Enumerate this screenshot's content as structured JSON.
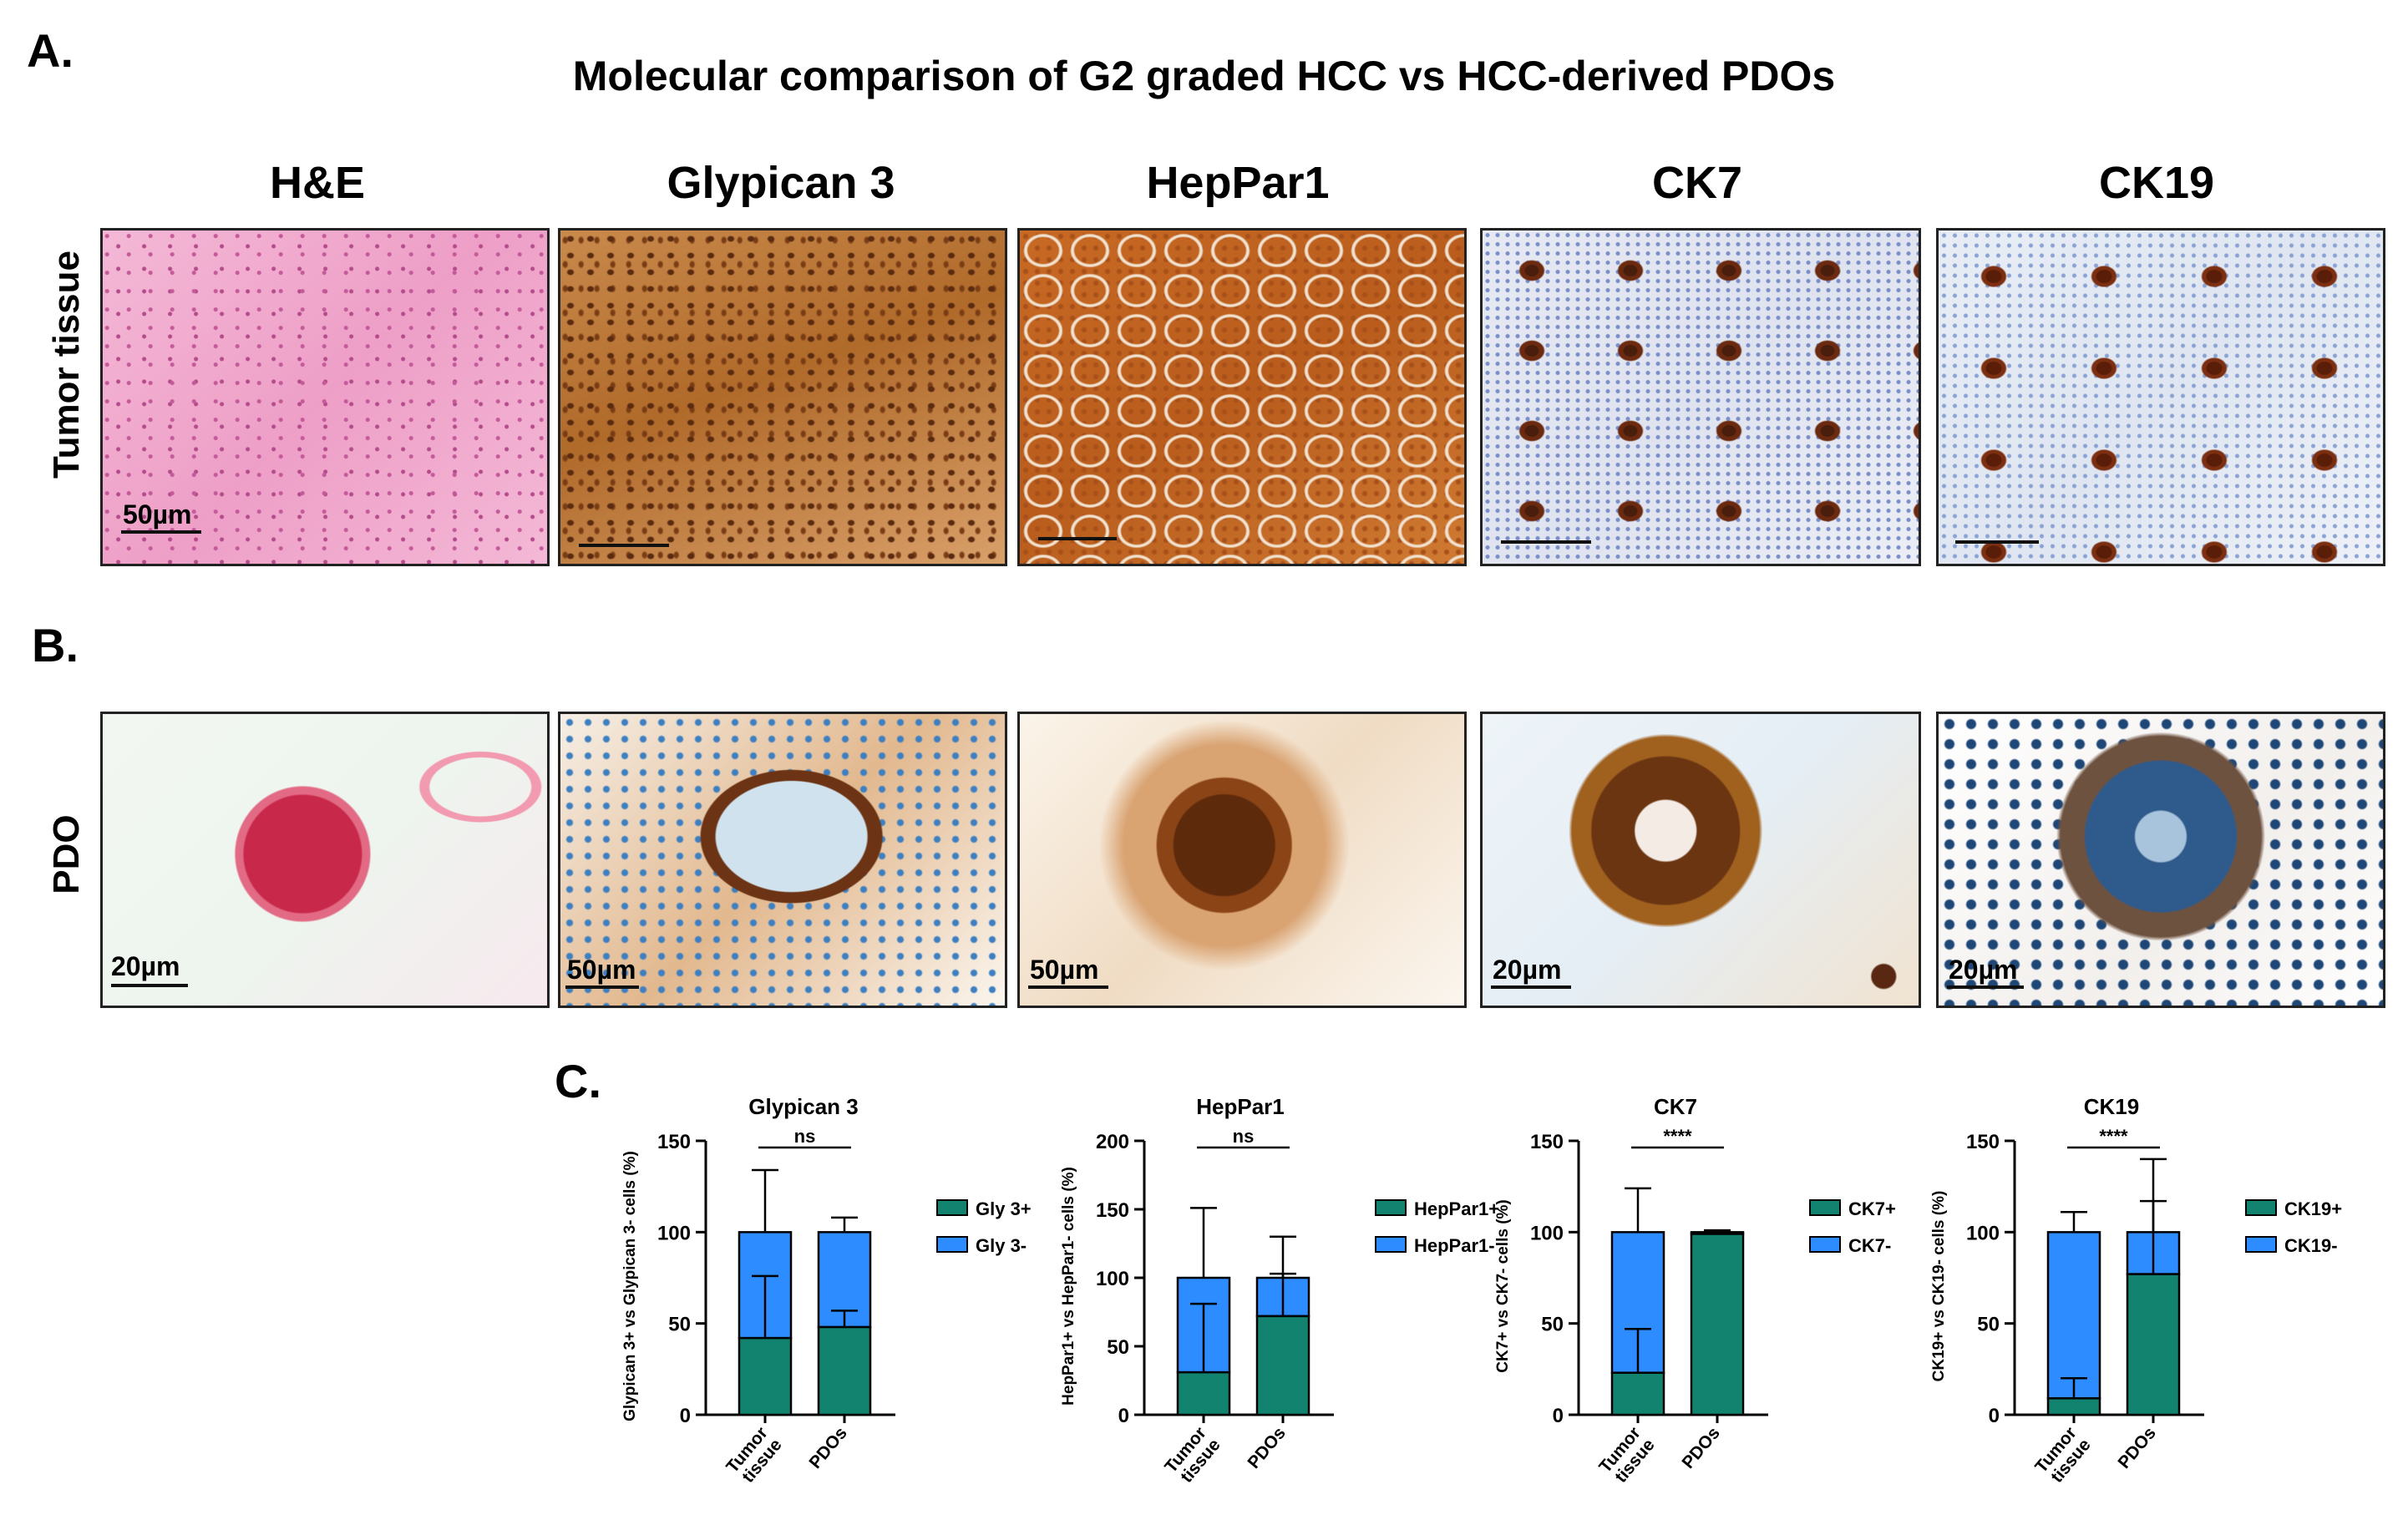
{
  "panel_labels": {
    "a": "A.",
    "b": "B.",
    "c": "C."
  },
  "title": "Molecular comparison of G2 graded HCC vs HCC-derived PDOs",
  "columns": [
    "H&E",
    "Glypican 3",
    "HepPar1",
    "CK7",
    "CK19"
  ],
  "rows": {
    "tumor": "Tumor tissue",
    "pdo": "PDO"
  },
  "scale_labels": {
    "tumor": [
      "50µm",
      "",
      "",
      "",
      ""
    ],
    "pdo": [
      "20µm",
      "50µm",
      "50µm",
      "20µm",
      "20µm"
    ]
  },
  "colors": {
    "positive": "#12836f",
    "negative": "#2d8cff",
    "he_bg": "#f2a8cc",
    "dab": "#c87a2e",
    "hema": "#8fa6d6"
  },
  "chart_data": [
    {
      "type": "bar",
      "title": "Glypican 3",
      "ylabel": "Glypican 3+ vs Glypican 3- cells (%)",
      "categories": [
        "Tumor tissue",
        "PDOs"
      ],
      "ylim": [
        0,
        150
      ],
      "yticks": [
        0,
        50,
        100,
        150
      ],
      "series": [
        {
          "name": "Gly 3+",
          "values": [
            42,
            48
          ],
          "err_upper": [
            76,
            57
          ]
        },
        {
          "name": "Gly 3-",
          "values": [
            58,
            52
          ],
          "err_upper": [
            134,
            108
          ]
        }
      ],
      "significance": "ns"
    },
    {
      "type": "bar",
      "title": "HepPar1",
      "ylabel": "HepPar1+ vs HepPar1- cells (%)",
      "categories": [
        "Tumor tissue",
        "PDOs"
      ],
      "ylim": [
        0,
        200
      ],
      "yticks": [
        0,
        50,
        100,
        150,
        200
      ],
      "series": [
        {
          "name": "HepPar1+",
          "values": [
            31,
            72
          ],
          "err_upper": [
            81,
            103
          ]
        },
        {
          "name": "HepPar1-",
          "values": [
            69,
            28
          ],
          "err_upper": [
            151,
            130
          ]
        }
      ],
      "significance": "ns"
    },
    {
      "type": "bar",
      "title": "CK7",
      "ylabel": "CK7+ vs CK7- cells (%)",
      "categories": [
        "Tumor tissue",
        "PDOs"
      ],
      "ylim": [
        0,
        150
      ],
      "yticks": [
        0,
        50,
        100,
        150
      ],
      "series": [
        {
          "name": "CK7+",
          "values": [
            23,
            99
          ],
          "err_upper": [
            47,
            100
          ]
        },
        {
          "name": "CK7-",
          "values": [
            77,
            1
          ],
          "err_upper": [
            124,
            101
          ]
        }
      ],
      "significance": "****"
    },
    {
      "type": "bar",
      "title": "CK19",
      "ylabel": "CK19+ vs CK19- cells (%)",
      "categories": [
        "Tumor tissue",
        "PDOs"
      ],
      "ylim": [
        0,
        150
      ],
      "yticks": [
        0,
        50,
        100,
        150
      ],
      "series": [
        {
          "name": "CK19+",
          "values": [
            9,
            77
          ],
          "err_upper": [
            20,
            117
          ]
        },
        {
          "name": "CK19-",
          "values": [
            91,
            23
          ],
          "err_upper": [
            111,
            140
          ]
        }
      ],
      "significance": "****"
    }
  ]
}
